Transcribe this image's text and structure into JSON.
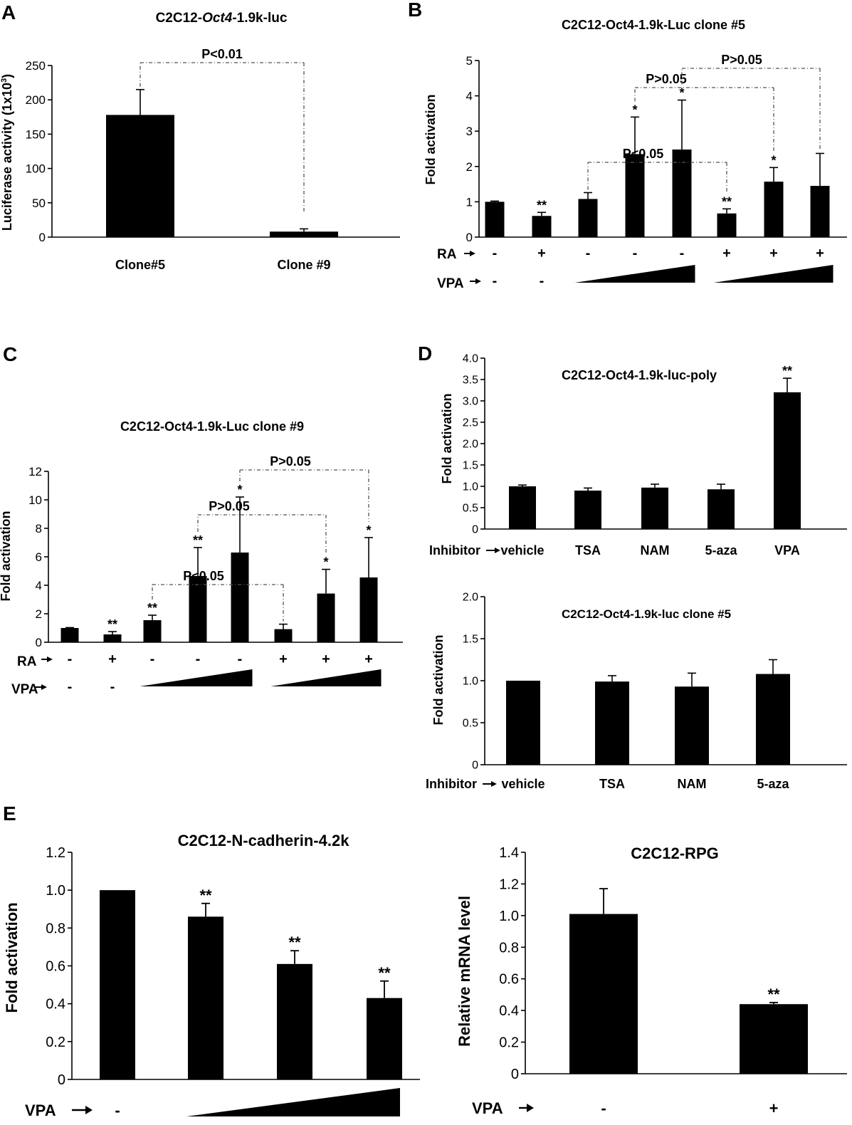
{
  "colors": {
    "bar": "#000000",
    "axis": "#000000",
    "bracket": "#555555"
  },
  "chart_data": [
    {
      "panel": "A",
      "type": "bar",
      "title_parts": [
        "C2C12-",
        "Oct4",
        "-1.9k-luc"
      ],
      "ylabel_parts": [
        "Luciferase activity (1x10",
        "3",
        ")"
      ],
      "categories": [
        "Clone#5",
        "Clone #9"
      ],
      "values": [
        178,
        8
      ],
      "errors": [
        37,
        4
      ],
      "ylim": [
        0,
        250
      ],
      "yticks": [
        "0",
        "50",
        "100",
        "150",
        "200",
        "250"
      ],
      "comparisons": [
        {
          "from": 0,
          "to": 1,
          "label": "P<0.01"
        }
      ]
    },
    {
      "panel": "B",
      "type": "bar",
      "title": "C2C12-Oct4-1.9k-Luc clone #5",
      "ylabel": "Fold activation",
      "values": [
        1.0,
        0.6,
        1.08,
        2.35,
        2.48,
        0.67,
        1.57,
        1.45
      ],
      "errors": [
        0.02,
        0.1,
        0.18,
        1.05,
        1.4,
        0.13,
        0.4,
        0.92
      ],
      "stars": [
        "",
        "**",
        "",
        "*",
        "*",
        "**",
        "*",
        ""
      ],
      "ylim": [
        0,
        5
      ],
      "yticks": [
        "0",
        "1",
        "2",
        "3",
        "4",
        "5"
      ],
      "conditions": {
        "RA_label": "RA",
        "RA": [
          "-",
          "+",
          "-",
          "-",
          "-",
          "+",
          "+",
          "+"
        ],
        "VPA_label": "VPA",
        "VPA": [
          "-",
          "-"
        ],
        "VPA_ramps": [
          [
            2,
            4
          ],
          [
            5,
            7
          ]
        ]
      },
      "comparisons": [
        {
          "from": 2,
          "to": 5,
          "label": "P<0.05"
        },
        {
          "from": 3,
          "to": 6,
          "label": "P>0.05"
        },
        {
          "from": 4,
          "to": 7,
          "label": "P>0.05"
        }
      ]
    },
    {
      "panel": "C",
      "type": "bar",
      "title": "C2C12-Oct4-1.9k-Luc clone #9",
      "ylabel": "Fold activation",
      "values": [
        1.0,
        0.55,
        1.55,
        4.65,
        6.3,
        0.92,
        3.42,
        4.55
      ],
      "errors": [
        0.03,
        0.2,
        0.35,
        2.0,
        3.9,
        0.35,
        1.7,
        2.8
      ],
      "stars": [
        "",
        "**",
        "**",
        "**",
        "*",
        "",
        "*",
        "*"
      ],
      "ylim": [
        0,
        12
      ],
      "yticks": [
        "0",
        "2",
        "4",
        "6",
        "8",
        "10",
        "12"
      ],
      "conditions": {
        "RA_label": "RA",
        "RA": [
          "-",
          "+",
          "-",
          "-",
          "-",
          "+",
          "+",
          "+"
        ],
        "VPA_label": "VPA",
        "VPA": [
          "-",
          "-"
        ],
        "VPA_ramps": [
          [
            2,
            4
          ],
          [
            5,
            7
          ]
        ]
      },
      "comparisons": [
        {
          "from": 2,
          "to": 5,
          "label": "P<0.05"
        },
        {
          "from": 3,
          "to": 6,
          "label": "P>0.05"
        },
        {
          "from": 4,
          "to": 7,
          "label": "P>0.05"
        }
      ]
    },
    {
      "panel": "D",
      "type": "bar",
      "title": "C2C12-Oct4-1.9k-luc-poly",
      "ylabel": "Fold activation",
      "categories": [
        "vehicle",
        "TSA",
        "NAM",
        "5-aza",
        "VPA"
      ],
      "values": [
        1.0,
        0.9,
        0.97,
        0.93,
        3.2
      ],
      "errors": [
        0.03,
        0.06,
        0.08,
        0.12,
        0.33
      ],
      "stars": [
        "",
        "",
        "",
        "",
        "**"
      ],
      "ylim": [
        0,
        4.0
      ],
      "yticks": [
        "0",
        "0.5",
        "1.0",
        "1.5",
        "2.0",
        "2.5",
        "3.0",
        "3.5",
        "4.0"
      ],
      "xprefix": "Inhibitor"
    },
    {
      "type": "bar",
      "title": "C2C12-Oct4-1.9k-luc clone #5",
      "ylabel": "Fold activation",
      "categories": [
        "vehicle",
        "TSA",
        "NAM",
        "5-aza"
      ],
      "values": [
        1.0,
        0.99,
        0.93,
        1.08
      ],
      "errors": [
        0.0,
        0.07,
        0.16,
        0.17
      ],
      "ylim": [
        0,
        2.0
      ],
      "yticks": [
        "0",
        "0.5",
        "1.0",
        "1.5",
        "2.0"
      ],
      "xprefix": "Inhibitor"
    },
    {
      "panel": "E",
      "type": "bar",
      "title": "C2C12-N-cadherin-4.2k",
      "ylabel": "Fold activation",
      "values": [
        1.0,
        0.86,
        0.61,
        0.43
      ],
      "errors": [
        0.0,
        0.07,
        0.07,
        0.09
      ],
      "stars": [
        "",
        "**",
        "**",
        "**"
      ],
      "ylim": [
        0,
        1.2
      ],
      "yticks": [
        "0",
        "0.2",
        "0.4",
        "0.6",
        "0.8",
        "1.0",
        "1.2"
      ],
      "conditions": {
        "VPA_label": "VPA",
        "VPA": [
          "-"
        ],
        "VPA_ramps": [
          [
            1,
            3
          ]
        ]
      }
    },
    {
      "type": "bar",
      "title": "C2C12-RPG",
      "ylabel": "Relative mRNA level",
      "values": [
        1.01,
        0.44
      ],
      "errors": [
        0.16,
        0.01
      ],
      "stars": [
        "",
        "**"
      ],
      "ylim": [
        0,
        1.4
      ],
      "yticks": [
        "0",
        "0.2",
        "0.4",
        "0.6",
        "0.8",
        "1.0",
        "1.2",
        "1.4"
      ],
      "conditions": {
        "VPA_label": "VPA",
        "VPA": [
          "-",
          "+"
        ]
      }
    }
  ]
}
